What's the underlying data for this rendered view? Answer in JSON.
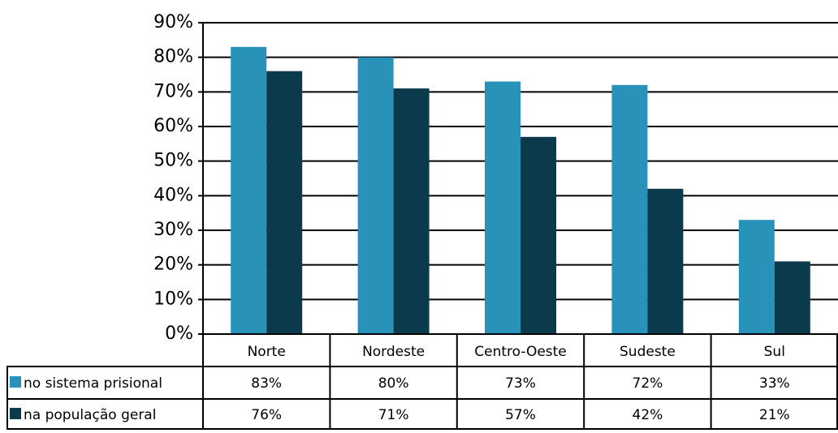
{
  "chart_data": {
    "type": "bar",
    "categories": [
      "Norte",
      "Nordeste",
      "Centro-Oeste",
      "Sudeste",
      "Sul"
    ],
    "series": [
      {
        "name": "no sistema prisional",
        "color": "#2892b8",
        "values": [
          83,
          80,
          73,
          72,
          33
        ],
        "value_labels": [
          "83%",
          "80%",
          "73%",
          "72%",
          "33%"
        ]
      },
      {
        "name": "na população geral",
        "color": "#0b3a4c",
        "values": [
          76,
          71,
          57,
          42,
          21
        ],
        "value_labels": [
          "76%",
          "71%",
          "57%",
          "42%",
          "21%"
        ]
      }
    ],
    "ylim": [
      0,
      90
    ],
    "yticks": [
      {
        "value": 0,
        "label": "0%"
      },
      {
        "value": 10,
        "label": "10%"
      },
      {
        "value": 20,
        "label": "20%"
      },
      {
        "value": 30,
        "label": "30%"
      },
      {
        "value": 40,
        "label": "40%"
      },
      {
        "value": 50,
        "label": "50%"
      },
      {
        "value": 60,
        "label": "60%"
      },
      {
        "value": 70,
        "label": "70%"
      },
      {
        "value": 80,
        "label": "80%"
      },
      {
        "value": 90,
        "label": "90%"
      }
    ],
    "grid": true
  }
}
